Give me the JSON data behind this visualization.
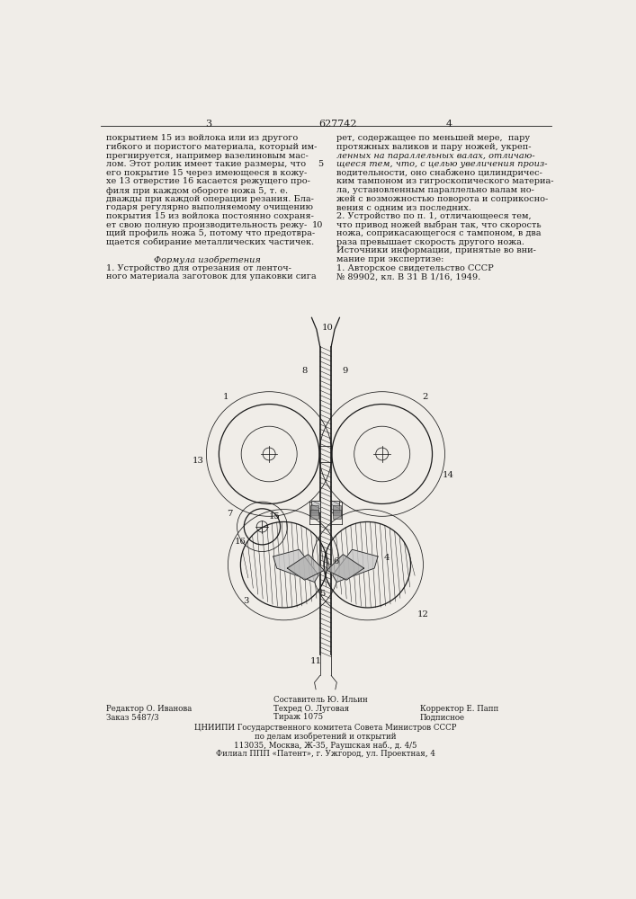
{
  "bg_color": "#f0ede8",
  "text_color": "#1a1a1a",
  "page_number_left": "3",
  "patent_number": "627742",
  "page_number_right": "4",
  "col1_lines": [
    "покрытием 15 из войлока или из другого",
    "гибкого и пористого материала, который им-",
    "прегнируется, например вазелиновым мас-",
    "лом. Этот ролик имеет такие размеры, что",
    "его покрытие 15 через имеющееся в кожу-",
    "хе 13 отверстие 16 касается режущего про-",
    "филя при каждом обороте ножа 5, т. е.",
    "дважды при каждой операции резания. Бла-",
    "годаря регулярно выполняемому очищению",
    "покрытия 15 из войлока постоянно сохраня-",
    "ет свою полную производительность режу-",
    "щий профиль ножа 5, потому что предотвра-",
    "щается собирание металлических частичек.",
    "",
    "Формула изобретения",
    "1. Устройство для отрезания от ленточ-",
    "ного материала заготовок для упаковки сига"
  ],
  "col2_lines_italic_flags": [
    false,
    false,
    true,
    true,
    false,
    false,
    false,
    false,
    false,
    false,
    false,
    false,
    false,
    false,
    false,
    false,
    false
  ],
  "col2_lines": [
    "рет, содержащее по меньшей мере,  пару",
    "протяжных валиков и пару ножей, укреп-",
    "ленных на параллельных валах, отличаю-",
    "щееся тем, что, с целью увеличения произ-",
    "водительности, оно снабжено цилиндричес-",
    "ким тампоном из гигроскопического материа-",
    "ла, установленным параллельно валам но-",
    "жей с возможностью поворота и соприкосно-",
    "вения с одним из последних.",
    "2. Устройство по п. 1, отличающееся тем,",
    "что привод ножей выбран так, что скорость",
    "ножа, соприкасающегося с тампоном, в два",
    "раза превышает скорость другого ножа.",
    "Источники информации, принятые во вни-",
    "мание при экспертизе:",
    "1. Авторское свидетельство СССР",
    "№ 89902, кл. В 31 В 1/16, 1949."
  ],
  "line_numbers_col2": [
    null,
    null,
    null,
    "5",
    null,
    null,
    null,
    null,
    null,
    null,
    "10",
    null,
    null,
    null,
    null,
    null,
    null
  ],
  "footer_col1_line1": "Редактор О. Иванова",
  "footer_col1_line2": "Заказ 5487/3",
  "footer_col2_line0": "Составитель Ю. Ильин",
  "footer_col2_line1": "Техред О. Луговая",
  "footer_col2_line2": "Тираж 1075",
  "footer_col3_line1": "Корректор Е. Папп",
  "footer_col3_line2": "Подписное",
  "footer_org_line1": "ЦНИИПИ Государственного комитета Совета Министров СССР",
  "footer_org_line2": "по делам изобретений и открытий",
  "footer_org_line3": "113035, Москва, Ж-35, Раушская наб., д. 4/5",
  "footer_org_line4": "Филиал ППП «Патент», г. Ужгород, ул. Проектная, 4"
}
